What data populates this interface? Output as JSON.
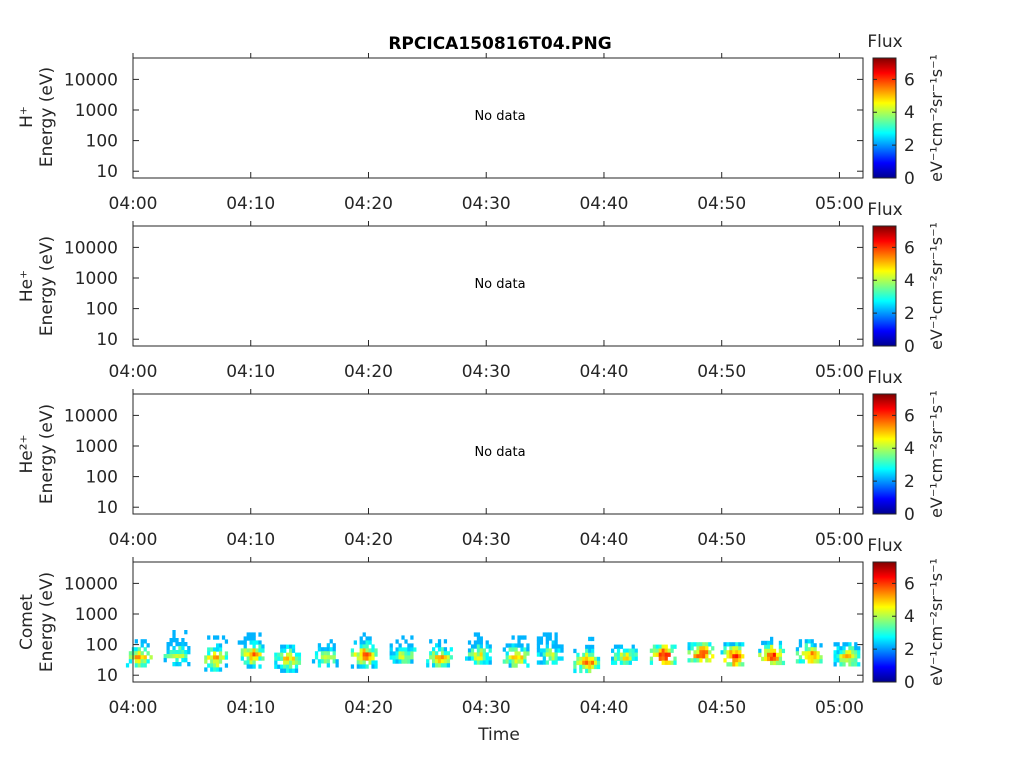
{
  "title": "RPCICA150816T04.PNG",
  "x_axis_label": "Time",
  "x_tick_labels": [
    "04:00",
    "04:10",
    "04:20",
    "04:30",
    "04:40",
    "04:50",
    "05:00"
  ],
  "y_tick_labels": [
    "10",
    "100",
    "1000",
    "10000"
  ],
  "colorbar": {
    "title": "Flux",
    "unit_label": "eV⁻¹cm⁻²sr⁻¹s⁻¹",
    "tick_labels": [
      "0",
      "2",
      "4",
      "6"
    ],
    "colormap": "jet"
  },
  "panels": [
    {
      "species": "H⁺",
      "ylabel": "Energy (eV)",
      "message": "No data"
    },
    {
      "species": "He⁺",
      "ylabel": "Energy (eV)",
      "message": "No data"
    },
    {
      "species": "He²⁺",
      "ylabel": "Energy (eV)",
      "message": "No data"
    },
    {
      "species": "Comet",
      "ylabel": "Energy (eV)",
      "message": ""
    }
  ],
  "chart_data": {
    "type": "heatmap",
    "title": "RPCICA150816T04.PNG",
    "xlabel": "Time",
    "ylabel": "Energy (eV)",
    "x_range": [
      "04:00",
      "05:02"
    ],
    "y_scale": "log",
    "y_range_eV": [
      6,
      50000
    ],
    "color_range": [
      0,
      7.3
    ],
    "comet_bursts": [
      {
        "t": 0.5,
        "e_low": 20,
        "e_high": 150,
        "peak_e": 45,
        "level": 5.5
      },
      {
        "t": 3.7,
        "e_low": 25,
        "e_high": 300,
        "peak_e": 50,
        "level": 4.6
      },
      {
        "t": 6.9,
        "e_low": 18,
        "e_high": 200,
        "peak_e": 40,
        "level": 5.6
      },
      {
        "t": 10.0,
        "e_low": 20,
        "e_high": 250,
        "peak_e": 55,
        "level": 5.7
      },
      {
        "t": 13.1,
        "e_low": 15,
        "e_high": 100,
        "peak_e": 40,
        "level": 5.2
      },
      {
        "t": 16.3,
        "e_low": 20,
        "e_high": 150,
        "peak_e": 45,
        "level": 4.4
      },
      {
        "t": 19.6,
        "e_low": 20,
        "e_high": 250,
        "peak_e": 50,
        "level": 6.2
      },
      {
        "t": 22.9,
        "e_low": 25,
        "e_high": 200,
        "peak_e": 50,
        "level": 4.6
      },
      {
        "t": 26.0,
        "e_low": 20,
        "e_high": 150,
        "peak_e": 40,
        "level": 5.5
      },
      {
        "t": 29.3,
        "e_low": 25,
        "e_high": 250,
        "peak_e": 50,
        "level": 4.7
      },
      {
        "t": 32.5,
        "e_low": 20,
        "e_high": 200,
        "peak_e": 45,
        "level": 5.6
      },
      {
        "t": 35.4,
        "e_low": 25,
        "e_high": 250,
        "peak_e": 50,
        "level": 4.5
      },
      {
        "t": 38.5,
        "e_low": 15,
        "e_high": 180,
        "peak_e": 30,
        "level": 5.8
      },
      {
        "t": 41.7,
        "e_low": 25,
        "e_high": 100,
        "peak_e": 45,
        "level": 4.8
      },
      {
        "t": 45.0,
        "e_low": 30,
        "e_high": 100,
        "peak_e": 50,
        "level": 6.9
      },
      {
        "t": 48.2,
        "e_low": 30,
        "e_high": 120,
        "peak_e": 55,
        "level": 6.5
      },
      {
        "t": 51.0,
        "e_low": 25,
        "e_high": 120,
        "peak_e": 45,
        "level": 6.9
      },
      {
        "t": 54.2,
        "e_low": 25,
        "e_high": 180,
        "peak_e": 50,
        "level": 6.4
      },
      {
        "t": 57.4,
        "e_low": 25,
        "e_high": 150,
        "peak_e": 50,
        "level": 6.0
      },
      {
        "t": 60.6,
        "e_low": 25,
        "e_high": 120,
        "peak_e": 45,
        "level": 5.2
      }
    ]
  }
}
